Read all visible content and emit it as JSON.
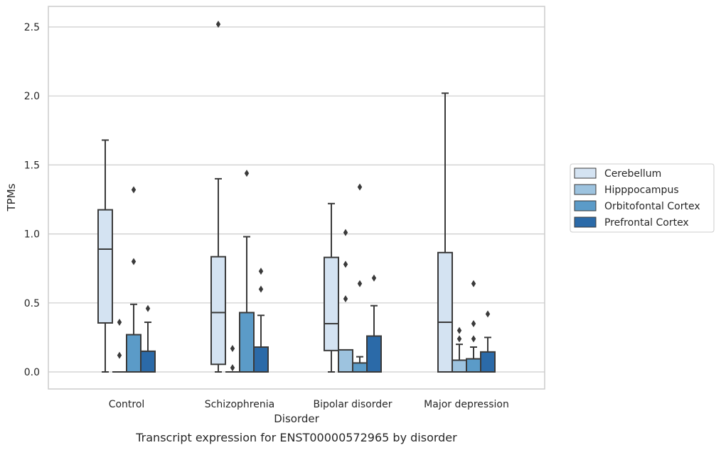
{
  "chart_data": {
    "type": "box",
    "xlabel": "Disorder",
    "ylabel": "TPMs",
    "caption": "Transcript expression for ENST00000572965 by disorder",
    "ylim": [
      -0.12,
      2.65
    ],
    "yticks": [
      "0.0",
      "0.5",
      "1.0",
      "1.5",
      "2.0",
      "2.5"
    ],
    "grid": "horizontal",
    "legend_position": "right",
    "categories": [
      "Control",
      "Schizophrenia",
      "Bipolar disorder",
      "Major depression"
    ],
    "series": [
      {
        "name": "Cerebellum",
        "color": "#d4e3f2",
        "boxes": [
          {
            "whisker_low": 0.0,
            "q1": 0.355,
            "median": 0.89,
            "q3": 1.175,
            "whisker_high": 1.68,
            "outliers": []
          },
          {
            "whisker_low": 0.0,
            "q1": 0.055,
            "median": 0.43,
            "q3": 0.835,
            "whisker_high": 1.4,
            "outliers": [
              2.52
            ]
          },
          {
            "whisker_low": 0.0,
            "q1": 0.155,
            "median": 0.35,
            "q3": 0.83,
            "whisker_high": 1.22,
            "outliers": []
          },
          {
            "whisker_low": 0.0,
            "q1": 0.0,
            "median": 0.36,
            "q3": 0.865,
            "whisker_high": 2.02,
            "outliers": []
          }
        ]
      },
      {
        "name": "Hipppocampus",
        "color": "#9dc3df",
        "boxes": [
          {
            "whisker_low": 0.0,
            "q1": 0.0,
            "median": 0.0,
            "q3": 0.0,
            "whisker_high": 0.0,
            "outliers": [
              0.12,
              0.36
            ]
          },
          {
            "whisker_low": 0.0,
            "q1": 0.0,
            "median": 0.0,
            "q3": 0.0,
            "whisker_high": 0.0,
            "outliers": [
              0.03,
              0.17
            ]
          },
          {
            "whisker_low": 0.0,
            "q1": 0.0,
            "median": 0.0,
            "q3": 0.16,
            "whisker_high": 0.16,
            "outliers": [
              0.53,
              0.78,
              1.01
            ]
          },
          {
            "whisker_low": 0.0,
            "q1": 0.0,
            "median": 0.0,
            "q3": 0.085,
            "whisker_high": 0.2,
            "outliers": [
              0.24,
              0.3
            ]
          }
        ]
      },
      {
        "name": "Orbitofontal Cortex",
        "color": "#5b9bc8",
        "boxes": [
          {
            "whisker_low": 0.0,
            "q1": 0.0,
            "median": 0.0,
            "q3": 0.27,
            "whisker_high": 0.49,
            "outliers": [
              0.8,
              1.32
            ]
          },
          {
            "whisker_low": 0.0,
            "q1": 0.0,
            "median": 0.0,
            "q3": 0.43,
            "whisker_high": 0.98,
            "outliers": [
              1.44
            ]
          },
          {
            "whisker_low": 0.0,
            "q1": 0.0,
            "median": 0.0,
            "q3": 0.065,
            "whisker_high": 0.11,
            "outliers": [
              0.64,
              1.34
            ]
          },
          {
            "whisker_low": 0.0,
            "q1": 0.0,
            "median": 0.0,
            "q3": 0.095,
            "whisker_high": 0.18,
            "outliers": [
              0.24,
              0.35,
              0.64
            ]
          }
        ]
      },
      {
        "name": "Prefrontal Cortex",
        "color": "#2b6aa8",
        "boxes": [
          {
            "whisker_low": 0.0,
            "q1": 0.0,
            "median": 0.0,
            "q3": 0.15,
            "whisker_high": 0.36,
            "outliers": [
              0.46
            ]
          },
          {
            "whisker_low": 0.0,
            "q1": 0.0,
            "median": 0.0,
            "q3": 0.18,
            "whisker_high": 0.41,
            "outliers": [
              0.6,
              0.73
            ]
          },
          {
            "whisker_low": 0.0,
            "q1": 0.0,
            "median": 0.0,
            "q3": 0.26,
            "whisker_high": 0.48,
            "outliers": [
              0.68
            ]
          },
          {
            "whisker_low": 0.0,
            "q1": 0.0,
            "median": 0.0,
            "q3": 0.145,
            "whisker_high": 0.25,
            "outliers": [
              0.42
            ]
          }
        ]
      }
    ]
  }
}
